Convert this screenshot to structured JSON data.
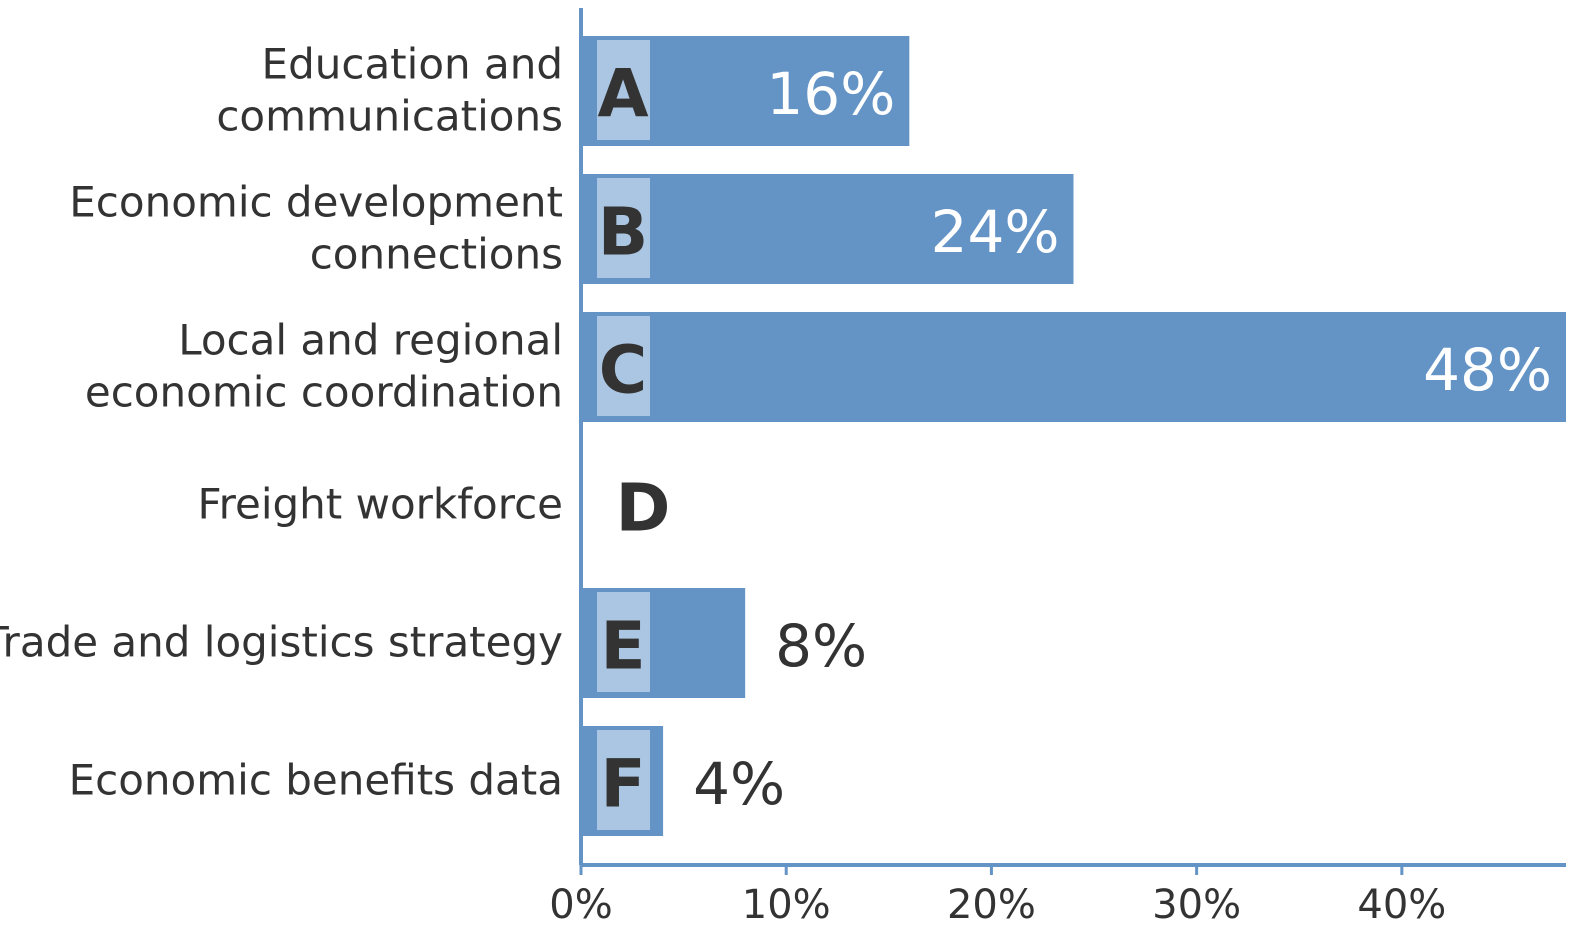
{
  "chart_data": {
    "type": "barh",
    "categories": [
      [
        "Education and",
        "communications"
      ],
      [
        "Economic development",
        "connections"
      ],
      [
        "Local and regional",
        "economic coordination"
      ],
      [
        "Freight workforce"
      ],
      [
        "Trade and logistics strategy"
      ],
      [
        "Economic benefits data"
      ]
    ],
    "letters": [
      "A",
      "B",
      "C",
      "D",
      "E",
      "F"
    ],
    "values": [
      16,
      24,
      48,
      0,
      8,
      4
    ],
    "value_labels": [
      "16%",
      "24%",
      "48%",
      null,
      "8%",
      "4%"
    ],
    "color": "#6494c6",
    "xlim": [
      0,
      48
    ],
    "xticks": [
      {
        "value": 0,
        "label": "0%"
      },
      {
        "value": 10,
        "label": "10%"
      },
      {
        "value": 20,
        "label": "20%"
      },
      {
        "value": 30,
        "label": "30%"
      },
      {
        "value": 40,
        "label": "40%"
      }
    ]
  }
}
